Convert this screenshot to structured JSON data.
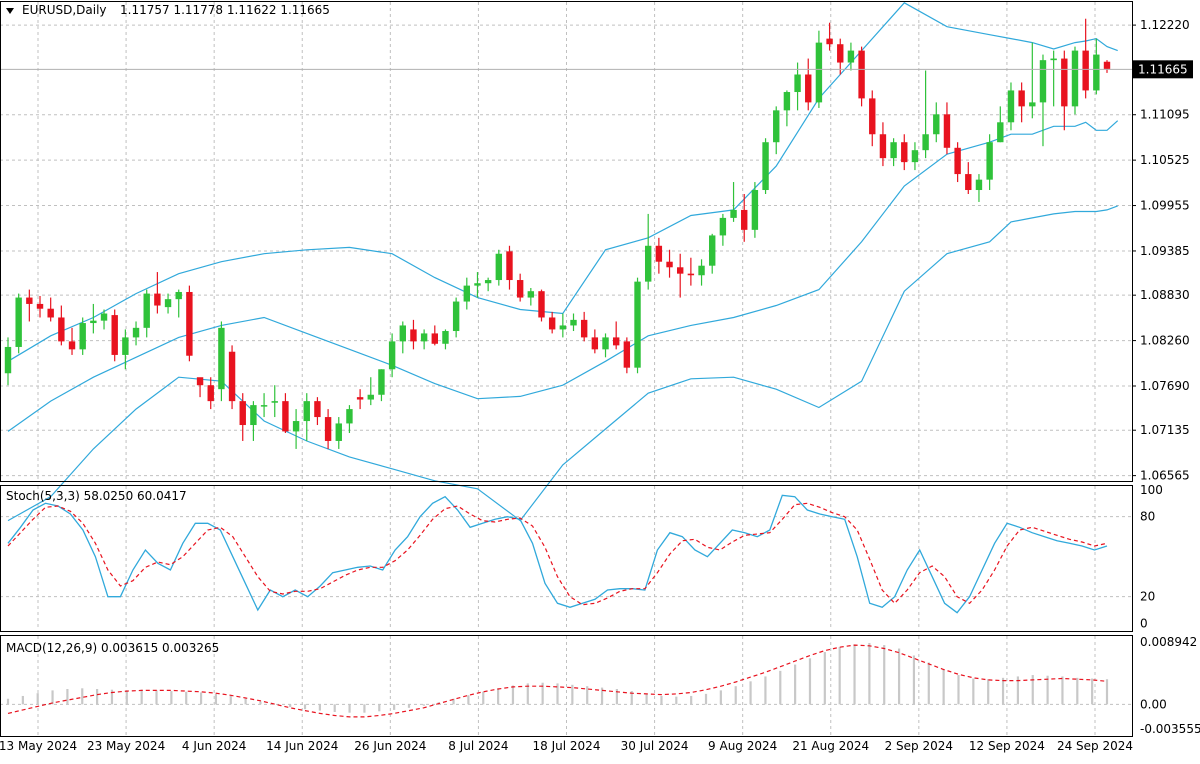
{
  "chart_data": {
    "type": "candlestick",
    "header": {
      "symbol_tf": "EURUSD,Daily",
      "ohlc": "1.11757 1.11778 1.11622 1.11665"
    },
    "colors": {
      "bull": "#2fc23a",
      "bear": "#e8131f",
      "band": "#31a9db",
      "signal": "#e8131f",
      "hist": "#c8c8c8",
      "grid": "#c0c0c0"
    },
    "x_labels": [
      "13 May 2024",
      "23 May 2024",
      "4 Jun 2024",
      "14 Jun 2024",
      "26 Jun 2024",
      "8 Jul 2024",
      "18 Jul 2024",
      "30 Jul 2024",
      "9 Aug 2024",
      "21 Aug 2024",
      "2 Sep 2024",
      "12 Sep 2024",
      "24 Sep 2024"
    ],
    "price": {
      "ticks": [
        "1.12220",
        "1.11095",
        "1.10525",
        "1.09955",
        "1.09385",
        "1.08830",
        "1.08260",
        "1.07690",
        "1.07135",
        "1.06565"
      ],
      "tick_values": [
        1.1222,
        1.11095,
        1.10525,
        1.09955,
        1.09385,
        1.0883,
        1.0826,
        1.0769,
        1.07135,
        1.06565
      ],
      "ylim": [
        1.0651,
        1.1251
      ],
      "last_price_label": "1.11665",
      "last_price": 1.11665,
      "candles": [
        [
          1.0785,
          1.083,
          1.077,
          1.0818
        ],
        [
          1.0818,
          1.0885,
          1.081,
          1.088
        ],
        [
          1.088,
          1.089,
          1.085,
          1.0872
        ],
        [
          1.0872,
          1.0882,
          1.0855,
          1.0866
        ],
        [
          1.0866,
          1.088,
          1.085,
          1.0855
        ],
        [
          1.0855,
          1.087,
          1.082,
          1.0825
        ],
        [
          1.0825,
          1.0842,
          1.0808,
          1.0815
        ],
        [
          1.0815,
          1.0855,
          1.0808,
          1.0848
        ],
        [
          1.0848,
          1.0872,
          1.0835,
          1.0851
        ],
        [
          1.0851,
          1.0865,
          1.084,
          1.086
        ],
        [
          1.0858,
          1.0865,
          1.08,
          1.0808
        ],
        [
          1.0808,
          1.084,
          1.079,
          1.083
        ],
        [
          1.083,
          1.085,
          1.082,
          1.0842
        ],
        [
          1.0842,
          1.089,
          1.083,
          1.0885
        ],
        [
          1.0885,
          1.0912,
          1.086,
          1.087
        ],
        [
          1.0868,
          1.0885,
          1.086,
          1.0878
        ],
        [
          1.0878,
          1.089,
          1.0855,
          1.0887
        ],
        [
          1.0887,
          1.0895,
          1.08,
          1.0807
        ],
        [
          1.078,
          1.0775,
          1.0755,
          1.077
        ],
        [
          1.077,
          1.078,
          1.074,
          1.075
        ],
        [
          1.0765,
          1.085,
          1.075,
          1.0842
        ],
        [
          1.0812,
          1.082,
          1.074,
          1.075
        ],
        [
          1.075,
          1.076,
          1.07,
          1.072
        ],
        [
          1.072,
          1.075,
          1.07,
          1.0745
        ],
        [
          1.0745,
          1.076,
          1.073,
          1.0745
        ],
        [
          1.0748,
          1.077,
          1.073,
          1.075
        ],
        [
          1.075,
          1.076,
          1.071,
          1.0712
        ],
        [
          1.0712,
          1.074,
          1.069,
          1.0725
        ],
        [
          1.0725,
          1.076,
          1.07,
          1.075
        ],
        [
          1.075,
          1.0755,
          1.072,
          1.073
        ],
        [
          1.073,
          1.074,
          1.069,
          1.07
        ],
        [
          1.07,
          1.073,
          1.069,
          1.0722
        ],
        [
          1.0722,
          1.0745,
          1.071,
          1.074
        ],
        [
          1.0755,
          1.0765,
          1.074,
          1.0752
        ],
        [
          1.0752,
          1.078,
          1.0745,
          1.0758
        ],
        [
          1.0758,
          1.079,
          1.075,
          1.079
        ],
        [
          1.079,
          1.0835,
          1.078,
          1.0825
        ],
        [
          1.0825,
          1.085,
          1.081,
          1.0845
        ],
        [
          1.084,
          1.0852,
          1.0815,
          1.0825
        ],
        [
          1.0825,
          1.084,
          1.0815,
          1.0835
        ],
        [
          1.0835,
          1.0845,
          1.082,
          1.0822
        ],
        [
          1.0822,
          1.084,
          1.0815,
          1.0838
        ],
        [
          1.0838,
          1.088,
          1.083,
          1.0875
        ],
        [
          1.0875,
          1.0905,
          1.0865,
          1.0895
        ],
        [
          1.0895,
          1.0912,
          1.088,
          1.0898
        ],
        [
          1.0898,
          1.0905,
          1.0888,
          1.0902
        ],
        [
          1.0902,
          1.094,
          1.0895,
          1.0935
        ],
        [
          1.0938,
          1.0945,
          1.089,
          1.0902
        ],
        [
          1.0902,
          1.091,
          1.0875,
          1.088
        ],
        [
          1.088,
          1.0892,
          1.087,
          1.0888
        ],
        [
          1.0888,
          1.089,
          1.085,
          1.0855
        ],
        [
          1.0855,
          1.0862,
          1.0835,
          1.084
        ],
        [
          1.084,
          1.086,
          1.083,
          1.0845
        ],
        [
          1.0845,
          1.086,
          1.0838,
          1.0852
        ],
        [
          1.0852,
          1.0862,
          1.0825,
          1.083
        ],
        [
          1.083,
          1.084,
          1.081,
          1.0815
        ],
        [
          1.0815,
          1.0835,
          1.0805,
          1.083
        ],
        [
          1.083,
          1.085,
          1.0815,
          1.082
        ],
        [
          1.0825,
          1.083,
          1.0785,
          1.0792
        ],
        [
          1.0792,
          1.0905,
          1.0785,
          1.09
        ],
        [
          1.09,
          1.0985,
          1.089,
          1.0945
        ],
        [
          1.0945,
          1.0955,
          1.091,
          1.0925
        ],
        [
          1.0925,
          1.094,
          1.0905,
          1.0918
        ],
        [
          1.0918,
          1.0935,
          1.088,
          1.091
        ],
        [
          1.091,
          1.093,
          1.0895,
          1.0908
        ],
        [
          1.0908,
          1.0928,
          1.0895,
          1.092
        ],
        [
          1.092,
          1.096,
          1.091,
          1.0958
        ],
        [
          1.0958,
          1.0985,
          1.0945,
          1.098
        ],
        [
          1.098,
          1.1025,
          1.0975,
          1.099
        ],
        [
          1.099,
          1.101,
          1.095,
          1.0965
        ],
        [
          1.0965,
          1.1025,
          1.0955,
          1.1015
        ],
        [
          1.1015,
          1.108,
          1.101,
          1.1075
        ],
        [
          1.1075,
          1.112,
          1.106,
          1.1115
        ],
        [
          1.1115,
          1.114,
          1.1095,
          1.1138
        ],
        [
          1.1138,
          1.1175,
          1.1115,
          1.116
        ],
        [
          1.116,
          1.118,
          1.1115,
          1.1125
        ],
        [
          1.1125,
          1.1215,
          1.1118,
          1.12
        ],
        [
          1.1205,
          1.1225,
          1.119,
          1.1198
        ],
        [
          1.1198,
          1.1205,
          1.116,
          1.1175
        ],
        [
          1.1175,
          1.12,
          1.1165,
          1.119
        ],
        [
          1.119,
          1.1195,
          1.112,
          1.113
        ],
        [
          1.113,
          1.114,
          1.107,
          1.1085
        ],
        [
          1.1085,
          1.11,
          1.1045,
          1.1055
        ],
        [
          1.1055,
          1.108,
          1.1045,
          1.1075
        ],
        [
          1.1075,
          1.1085,
          1.104,
          1.105
        ],
        [
          1.105,
          1.1075,
          1.104,
          1.1065
        ],
        [
          1.1065,
          1.1165,
          1.1055,
          1.1085
        ],
        [
          1.1085,
          1.1125,
          1.1075,
          1.111
        ],
        [
          1.111,
          1.1125,
          1.106,
          1.1068
        ],
        [
          1.1068,
          1.1075,
          1.1025,
          1.1035
        ],
        [
          1.1035,
          1.105,
          1.101,
          1.1015
        ],
        [
          1.1015,
          1.1035,
          1.1,
          1.1028
        ],
        [
          1.1028,
          1.1085,
          1.1015,
          1.1075
        ],
        [
          1.1075,
          1.112,
          1.1075,
          1.11
        ],
        [
          1.11,
          1.115,
          1.109,
          1.114
        ],
        [
          1.114,
          1.115,
          1.11,
          1.112
        ],
        [
          1.112,
          1.12,
          1.1105,
          1.1125
        ],
        [
          1.1125,
          1.1185,
          1.107,
          1.1178
        ],
        [
          1.1178,
          1.119,
          1.112,
          1.118
        ],
        [
          1.118,
          1.119,
          1.109,
          1.112
        ],
        [
          1.112,
          1.1195,
          1.111,
          1.119
        ],
        [
          1.119,
          1.123,
          1.113,
          1.114
        ],
        [
          1.114,
          1.1205,
          1.1135,
          1.1185
        ],
        [
          1.1176,
          1.1178,
          1.1162,
          1.1167
        ]
      ],
      "bb_upper": [
        1.08,
        1.0832,
        1.0855,
        1.0885,
        1.091,
        1.0925,
        1.0935,
        1.094,
        1.0943,
        1.0935,
        1.0905,
        1.088,
        1.0865,
        1.086,
        1.094,
        1.0955,
        1.0983,
        1.099,
        1.1045,
        1.113,
        1.119,
        1.125,
        1.122,
        1.121,
        1.1205,
        1.12,
        1.1192,
        1.12,
        1.1202,
        1.1205,
        1.1195,
        1.119
      ],
      "bb_middle": [
        1.0712,
        1.075,
        1.078,
        1.0805,
        1.083,
        1.0845,
        1.0855,
        1.0835,
        1.0815,
        1.0795,
        1.0772,
        1.0753,
        1.0756,
        1.077,
        1.08,
        1.0832,
        1.0845,
        1.0855,
        1.087,
        1.089,
        1.095,
        1.102,
        1.106,
        1.1075,
        1.1085,
        1.1085,
        1.1095,
        1.1095,
        1.11,
        1.109,
        1.109,
        1.1102
      ],
      "bb_lower": [
        1.06,
        1.063,
        1.069,
        1.074,
        1.078,
        1.0775,
        1.0725,
        1.07,
        1.068,
        1.0665,
        1.065,
        1.064,
        1.06,
        1.067,
        1.0715,
        1.076,
        1.0778,
        1.078,
        1.0765,
        1.0742,
        1.0775,
        1.0888,
        1.0935,
        1.095,
        1.0975,
        1.098,
        1.0985,
        1.0988,
        1.0988,
        1.0988,
        1.099,
        1.0995
      ],
      "band_index": [
        0,
        4,
        8,
        12,
        16,
        20,
        24,
        28,
        32,
        36,
        40,
        44,
        48,
        52,
        56,
        60,
        64,
        68,
        72,
        76,
        80,
        84,
        88,
        92,
        94,
        96,
        98,
        100,
        101,
        102,
        103,
        104
      ]
    },
    "stochastic": {
      "title": "Stoch(5,3,3) 58.0250 60.0417",
      "ticks": [
        "100",
        "80",
        "20",
        "0"
      ],
      "tick_values": [
        100,
        80,
        20,
        0
      ],
      "ylim": [
        -5,
        103
      ],
      "main": [
        60,
        72,
        85,
        90,
        88,
        82,
        70,
        50,
        20,
        20,
        40,
        55,
        45,
        40,
        60,
        75,
        75,
        70,
        50,
        30,
        10,
        25,
        20,
        25,
        20,
        28,
        38,
        40,
        42,
        43,
        40,
        55,
        65,
        80,
        90,
        95,
        85,
        72,
        75,
        78,
        80,
        78,
        60,
        30,
        15,
        12,
        15,
        18,
        25,
        26,
        26,
        25,
        55,
        68,
        65,
        55,
        50,
        60,
        70,
        68,
        65,
        70,
        96,
        95,
        85,
        82,
        80,
        78,
        50,
        15,
        12,
        20,
        40,
        55,
        35,
        15,
        8,
        20,
        40,
        60,
        75,
        72,
        68,
        65,
        62,
        60,
        58,
        55,
        58
      ],
      "signal": [
        58,
        68,
        78,
        87,
        88,
        84,
        75,
        60,
        40,
        28,
        32,
        42,
        46,
        44,
        50,
        60,
        70,
        72,
        65,
        50,
        35,
        24,
        22,
        24,
        24,
        26,
        31,
        36,
        40,
        42,
        42,
        47,
        55,
        66,
        78,
        86,
        88,
        82,
        77,
        76,
        78,
        79,
        73,
        57,
        35,
        20,
        14,
        15,
        19,
        24,
        26,
        26,
        38,
        52,
        62,
        63,
        57,
        55,
        61,
        66,
        67,
        68,
        78,
        89,
        90,
        87,
        83,
        80,
        70,
        48,
        25,
        15,
        25,
        38,
        43,
        35,
        20,
        15,
        25,
        40,
        58,
        70,
        72,
        69,
        66,
        63,
        61,
        58,
        60
      ]
    },
    "macd": {
      "title": "MACD(12,26,9) 0.003615 0.003265",
      "ticks": [
        "0.008942",
        "0.00",
        "-0.003555"
      ],
      "tick_values": [
        0.008942,
        0.0,
        -0.003555
      ],
      "ylim": [
        -0.0044,
        0.0098
      ],
      "hist": [
        0.0008,
        0.0012,
        0.0016,
        0.002,
        0.0022,
        0.0023,
        0.0022,
        0.0021,
        0.002,
        0.0021,
        0.002,
        0.0019,
        0.0018,
        0.0017,
        0.0015,
        0.0012,
        0.0008,
        0.0004,
        0.0,
        -0.0004,
        -0.0007,
        -0.0009,
        -0.0011,
        -0.0012,
        -0.0012,
        -0.001,
        -0.0008,
        -0.0005,
        -0.0002,
        0.0003,
        0.0008,
        0.0013,
        0.0018,
        0.0023,
        0.0027,
        0.003,
        0.0031,
        0.003,
        0.0028,
        0.0026,
        0.0024,
        0.0022,
        0.0019,
        0.0015,
        0.0012,
        0.0011,
        0.0012,
        0.0015,
        0.002,
        0.0026,
        0.0033,
        0.004,
        0.0048,
        0.0057,
        0.0066,
        0.0075,
        0.0082,
        0.0086,
        0.0088,
        0.0085,
        0.008,
        0.007,
        0.006,
        0.005,
        0.0042,
        0.0037,
        0.0036,
        0.0038,
        0.004,
        0.0042,
        0.0041,
        0.004,
        0.0038,
        0.0037,
        0.0036
      ],
      "signal": [
        -0.0013,
        -0.0008,
        -0.0003,
        0.0002,
        0.0006,
        0.001,
        0.0014,
        0.0017,
        0.0019,
        0.002,
        0.002,
        0.002,
        0.0019,
        0.0018,
        0.0016,
        0.0013,
        0.0009,
        0.0005,
        0.0,
        -0.0005,
        -0.0009,
        -0.0013,
        -0.0016,
        -0.0018,
        -0.0018,
        -0.0016,
        -0.0013,
        -0.0009,
        -0.0005,
        0.0001,
        0.0007,
        0.0013,
        0.0018,
        0.0022,
        0.0025,
        0.0026,
        0.0026,
        0.0025,
        0.0024,
        0.0022,
        0.002,
        0.0018,
        0.0016,
        0.0015,
        0.0014,
        0.0015,
        0.0017,
        0.0021,
        0.0026,
        0.0032,
        0.0039,
        0.0046,
        0.0054,
        0.0062,
        0.007,
        0.0077,
        0.0082,
        0.0085,
        0.0084,
        0.008,
        0.0074,
        0.0066,
        0.0058,
        0.005,
        0.0043,
        0.0038,
        0.0035,
        0.0034,
        0.0034,
        0.0035,
        0.0036,
        0.0037,
        0.0036,
        0.0035,
        0.0033
      ]
    }
  }
}
